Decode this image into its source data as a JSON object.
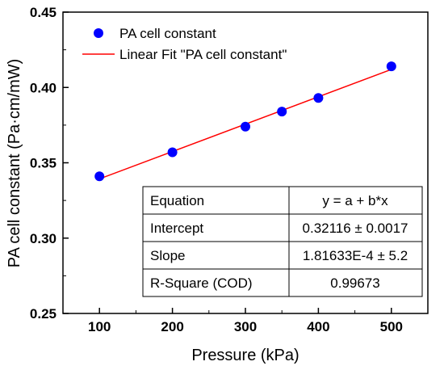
{
  "chart_data": {
    "type": "scatter",
    "xlabel": "Pressure (kPa)",
    "ylabel": "PA cell constant (Pa·cm/mW)",
    "xlim": [
      50,
      550
    ],
    "ylim": [
      0.25,
      0.45
    ],
    "xticks": [
      100,
      200,
      300,
      400,
      500
    ],
    "yticks": [
      0.25,
      0.3,
      0.35,
      0.4,
      0.45
    ],
    "ytick_labels": [
      "0.25",
      "0.30",
      "0.35",
      "0.40",
      "0.45"
    ],
    "series": [
      {
        "name": "PA cell constant",
        "kind": "points",
        "color": "#0000ff",
        "x": [
          100,
          200,
          300,
          350,
          400,
          500
        ],
        "y": [
          0.341,
          0.357,
          0.374,
          0.384,
          0.393,
          0.414
        ]
      },
      {
        "name": "Linear Fit \"PA cell constant\"",
        "kind": "line",
        "color": "#ff0000",
        "x": [
          100,
          500
        ],
        "y": [
          0.33932,
          0.41197
        ]
      }
    ],
    "fit_table": {
      "rows": [
        [
          "Equation",
          "y = a + b*x"
        ],
        [
          "Intercept",
          "0.32116 ± 0.0017"
        ],
        [
          "Slope",
          "1.81633E-4 ± 5.2"
        ],
        [
          "R-Square (COD)",
          "0.99673"
        ]
      ]
    },
    "legend_position": "top-left",
    "grid": false
  }
}
